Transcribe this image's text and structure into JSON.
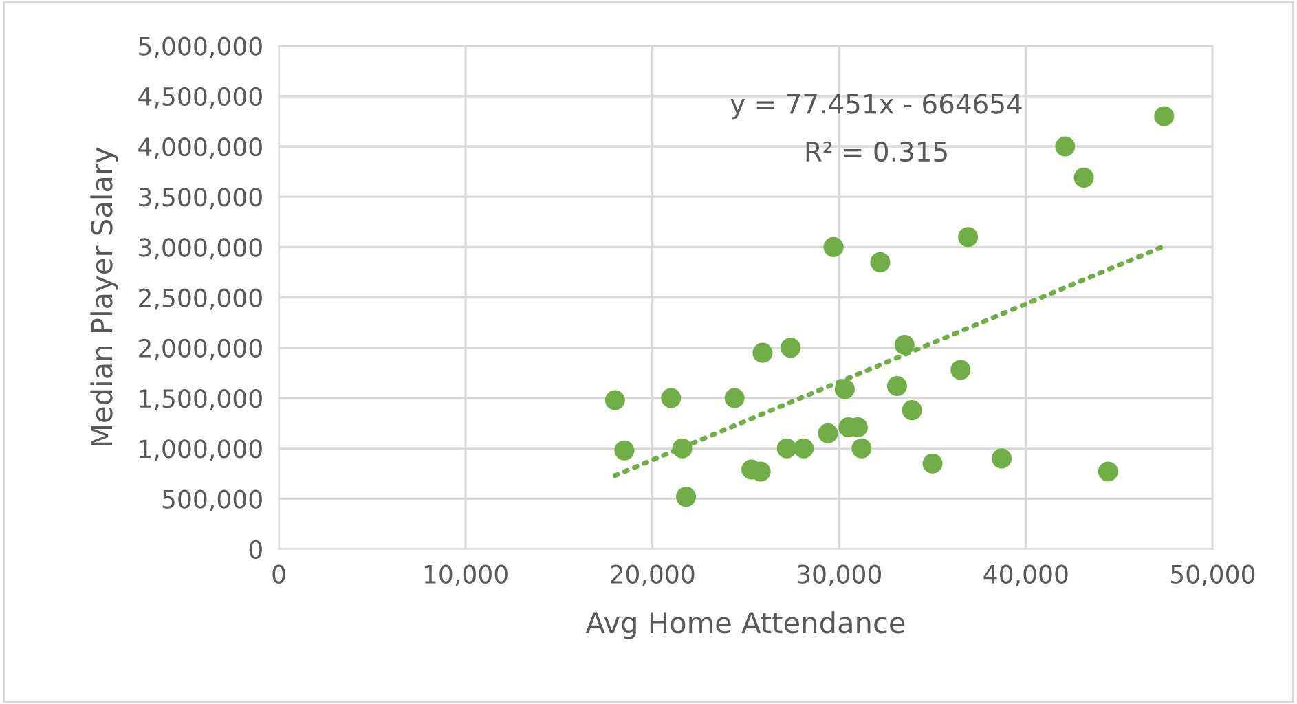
{
  "chart_data": {
    "type": "scatter",
    "xlabel": "Avg Home Attendance",
    "ylabel": "Median Player Salary",
    "xlim": [
      0,
      50000
    ],
    "xticks": [
      {
        "value": 0,
        "label": "0"
      },
      {
        "value": 10000,
        "label": "10,000"
      },
      {
        "value": 20000,
        "label": "20,000"
      },
      {
        "value": 30000,
        "label": "30,000"
      },
      {
        "value": 40000,
        "label": "40,000"
      },
      {
        "value": 50000,
        "label": "50,000"
      }
    ],
    "ylim": [
      0,
      5000000
    ],
    "yticks": [
      {
        "value": 0,
        "label": "0"
      },
      {
        "value": 500000,
        "label": "500,000"
      },
      {
        "value": 1000000,
        "label": "1,000,000"
      },
      {
        "value": 1500000,
        "label": "1,500,000"
      },
      {
        "value": 2000000,
        "label": "2,000,000"
      },
      {
        "value": 2500000,
        "label": "2,500,000"
      },
      {
        "value": 3000000,
        "label": "3,000,000"
      },
      {
        "value": 3500000,
        "label": "3,500,000"
      },
      {
        "value": 4000000,
        "label": "4,000,000"
      },
      {
        "value": 4500000,
        "label": "4,500,000"
      },
      {
        "value": 5000000,
        "label": "5,000,000"
      }
    ],
    "grid": true,
    "marker": "circle",
    "series": [
      {
        "color": "#70ad47",
        "x": [
          18000,
          18500,
          21000,
          21600,
          21800,
          24400,
          25300,
          25800,
          25900,
          27400,
          27200,
          28100,
          29400,
          29700,
          30300,
          30500,
          31000,
          31200,
          32200,
          33100,
          33500,
          33900,
          35000,
          36900,
          36500,
          38700,
          42100,
          43100,
          44400,
          47400
        ],
        "values": [
          1480000,
          980000,
          1500000,
          1000000,
          520000,
          1500000,
          790000,
          770000,
          1950000,
          2000000,
          1000000,
          1000000,
          1150000,
          3000000,
          1590000,
          1210000,
          1210000,
          1000000,
          2850000,
          1620000,
          2030000,
          1380000,
          850000,
          3100000,
          1780000,
          900000,
          4000000,
          3690000,
          770000,
          4300000
        ]
      },
      {
        "type": "line",
        "color": "#70ad47",
        "line_style": "dotted",
        "marker": "none",
        "x": [
          18000,
          47400
        ],
        "values": [
          730000,
          3010000
        ]
      }
    ],
    "annotations": [
      "y = 77.451x - 664654",
      "R² = 0.315"
    ]
  }
}
